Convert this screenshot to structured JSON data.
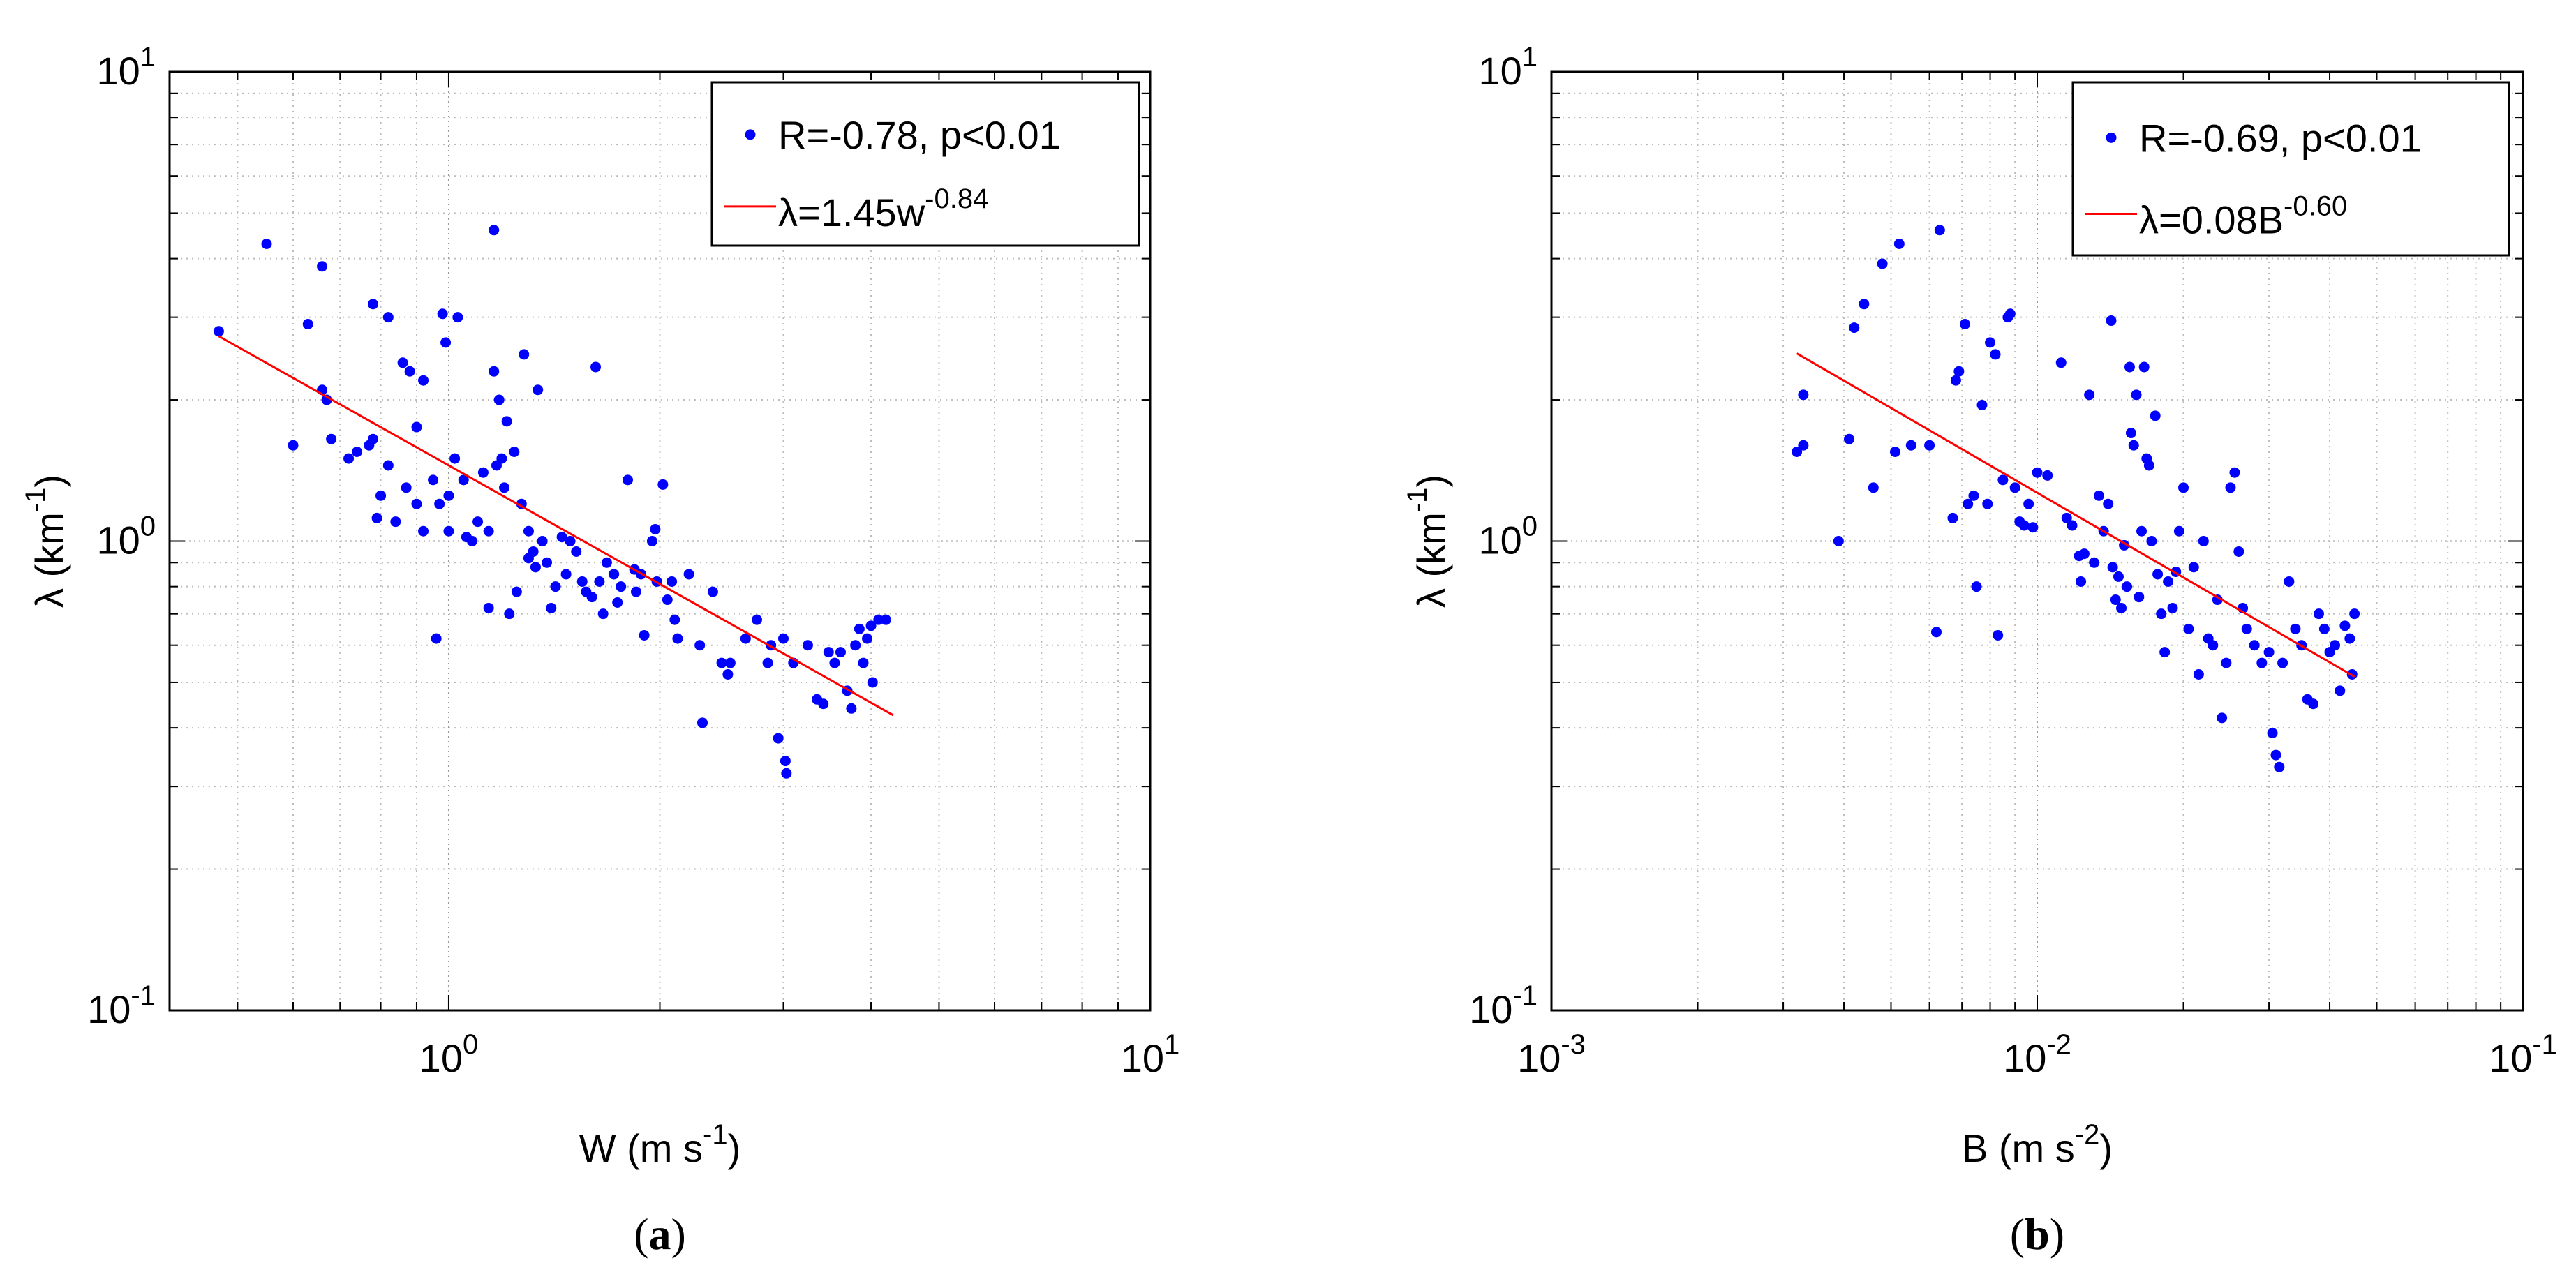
{
  "chart_data": [
    {
      "type": "scatter",
      "panel_label": "a",
      "xlabel": {
        "main": "W (m s",
        "sup": "-1",
        "end": ")"
      },
      "ylabel": {
        "main": "λ (km",
        "sup": "-1",
        "end": ")"
      },
      "xscale": "log",
      "yscale": "log",
      "xlim": [
        0.4,
        10
      ],
      "ylim": [
        0.1,
        10
      ],
      "xticks": [
        {
          "base": "10",
          "exp": "0",
          "value": 1
        },
        {
          "base": "10",
          "exp": "1",
          "value": 10
        }
      ],
      "yticks": [
        {
          "base": "10",
          "exp": "-1",
          "value": 0.1
        },
        {
          "base": "10",
          "exp": "0",
          "value": 1
        },
        {
          "base": "10",
          "exp": "1",
          "value": 10
        }
      ],
      "grid": true,
      "legend_position": "top-right",
      "legend": [
        {
          "kind": "marker",
          "text": "R=-0.78, p<0.01"
        },
        {
          "kind": "line",
          "text": "λ=1.45w",
          "sup": "-0.84"
        }
      ],
      "colors": {
        "points": "#0000ff",
        "fit": "#ff0000"
      },
      "fit": {
        "a": 1.45,
        "b": -0.84,
        "x_range": [
          0.47,
          4.3
        ]
      },
      "points": [
        [
          0.47,
          2.8
        ],
        [
          0.55,
          4.3
        ],
        [
          0.6,
          1.6
        ],
        [
          0.63,
          2.9
        ],
        [
          0.66,
          3.85
        ],
        [
          0.66,
          2.1
        ],
        [
          0.67,
          2.0
        ],
        [
          0.68,
          1.65
        ],
        [
          0.72,
          1.5
        ],
        [
          0.74,
          1.55
        ],
        [
          0.77,
          1.6
        ],
        [
          0.78,
          3.2
        ],
        [
          0.78,
          1.65
        ],
        [
          0.79,
          1.12
        ],
        [
          0.8,
          1.25
        ],
        [
          0.82,
          3.0
        ],
        [
          0.82,
          1.45
        ],
        [
          0.84,
          1.1
        ],
        [
          0.86,
          2.4
        ],
        [
          0.87,
          1.3
        ],
        [
          0.88,
          2.3
        ],
        [
          0.9,
          1.2
        ],
        [
          0.9,
          1.75
        ],
        [
          0.92,
          1.05
        ],
        [
          0.92,
          2.2
        ],
        [
          0.95,
          1.35
        ],
        [
          0.96,
          0.62
        ],
        [
          0.97,
          1.2
        ],
        [
          0.98,
          3.05
        ],
        [
          0.99,
          2.65
        ],
        [
          1.0,
          1.05
        ],
        [
          1.0,
          1.25
        ],
        [
          1.02,
          1.5
        ],
        [
          1.03,
          3.0
        ],
        [
          1.05,
          1.35
        ],
        [
          1.06,
          1.02
        ],
        [
          1.08,
          1.0
        ],
        [
          1.1,
          1.1
        ],
        [
          1.12,
          1.4
        ],
        [
          1.14,
          0.72
        ],
        [
          1.14,
          1.05
        ],
        [
          1.16,
          4.6
        ],
        [
          1.16,
          2.3
        ],
        [
          1.17,
          1.45
        ],
        [
          1.18,
          2.0
        ],
        [
          1.19,
          1.5
        ],
        [
          1.2,
          1.3
        ],
        [
          1.21,
          1.8
        ],
        [
          1.22,
          0.7
        ],
        [
          1.24,
          1.55
        ],
        [
          1.25,
          0.78
        ],
        [
          1.27,
          1.2
        ],
        [
          1.28,
          2.5
        ],
        [
          1.3,
          0.92
        ],
        [
          1.3,
          1.05
        ],
        [
          1.32,
          0.95
        ],
        [
          1.33,
          0.88
        ],
        [
          1.34,
          2.1
        ],
        [
          1.36,
          1.0
        ],
        [
          1.38,
          0.9
        ],
        [
          1.4,
          0.72
        ],
        [
          1.42,
          0.8
        ],
        [
          1.45,
          1.02
        ],
        [
          1.47,
          0.85
        ],
        [
          1.49,
          1.0
        ],
        [
          1.52,
          0.95
        ],
        [
          1.55,
          0.82
        ],
        [
          1.57,
          0.78
        ],
        [
          1.6,
          0.76
        ],
        [
          1.62,
          2.35
        ],
        [
          1.64,
          0.82
        ],
        [
          1.66,
          0.7
        ],
        [
          1.68,
          0.9
        ],
        [
          1.72,
          0.85
        ],
        [
          1.74,
          0.74
        ],
        [
          1.76,
          0.8
        ],
        [
          1.8,
          1.35
        ],
        [
          1.84,
          0.87
        ],
        [
          1.85,
          0.78
        ],
        [
          1.88,
          0.85
        ],
        [
          1.9,
          0.63
        ],
        [
          1.95,
          1.0
        ],
        [
          1.97,
          1.06
        ],
        [
          1.98,
          0.82
        ],
        [
          2.02,
          1.32
        ],
        [
          2.05,
          0.75
        ],
        [
          2.08,
          0.82
        ],
        [
          2.1,
          0.68
        ],
        [
          2.12,
          0.62
        ],
        [
          2.2,
          0.85
        ],
        [
          2.28,
          0.6
        ],
        [
          2.3,
          0.41
        ],
        [
          2.38,
          0.78
        ],
        [
          2.45,
          0.55
        ],
        [
          2.5,
          0.52
        ],
        [
          2.52,
          0.55
        ],
        [
          2.65,
          0.62
        ],
        [
          2.75,
          0.68
        ],
        [
          2.85,
          0.55
        ],
        [
          2.88,
          0.6
        ],
        [
          2.95,
          0.38
        ],
        [
          3.0,
          0.62
        ],
        [
          3.02,
          0.34
        ],
        [
          3.03,
          0.32
        ],
        [
          3.1,
          0.55
        ],
        [
          3.25,
          0.6
        ],
        [
          3.35,
          0.46
        ],
        [
          3.42,
          0.45
        ],
        [
          3.48,
          0.58
        ],
        [
          3.55,
          0.55
        ],
        [
          3.62,
          0.58
        ],
        [
          3.7,
          0.48
        ],
        [
          3.75,
          0.44
        ],
        [
          3.8,
          0.6
        ],
        [
          3.85,
          0.65
        ],
        [
          3.9,
          0.55
        ],
        [
          3.95,
          0.62
        ],
        [
          4.0,
          0.66
        ],
        [
          4.02,
          0.5
        ],
        [
          4.1,
          0.68
        ],
        [
          4.2,
          0.68
        ]
      ]
    },
    {
      "type": "scatter",
      "panel_label": "b",
      "xlabel": {
        "main": "B (m s",
        "sup": "-2",
        "end": ")"
      },
      "ylabel": {
        "main": "λ (km",
        "sup": "-1",
        "end": ")"
      },
      "xscale": "log",
      "yscale": "log",
      "xlim": [
        0.001,
        0.1
      ],
      "ylim": [
        0.1,
        10
      ],
      "xticks": [
        {
          "base": "10",
          "exp": "-3",
          "value": 0.001
        },
        {
          "base": "10",
          "exp": "-2",
          "value": 0.01
        },
        {
          "base": "10",
          "exp": "-1",
          "value": 0.1
        }
      ],
      "yticks": [
        {
          "base": "10",
          "exp": "-1",
          "value": 0.1
        },
        {
          "base": "10",
          "exp": "0",
          "value": 1
        },
        {
          "base": "10",
          "exp": "1",
          "value": 10
        }
      ],
      "grid": true,
      "legend_position": "top-right",
      "legend": [
        {
          "kind": "marker",
          "text": "R=-0.69, p<0.01"
        },
        {
          "kind": "line",
          "text": "λ=0.08B",
          "sup": "-0.60"
        }
      ],
      "colors": {
        "points": "#0000ff",
        "fit": "#ff0000"
      },
      "fit": {
        "a": 0.08,
        "b": -0.6,
        "x_range": [
          0.0032,
          0.045
        ]
      },
      "points": [
        [
          0.0032,
          1.55
        ],
        [
          0.0033,
          1.6
        ],
        [
          0.0033,
          2.05
        ],
        [
          0.0039,
          1.0
        ],
        [
          0.0041,
          1.65
        ],
        [
          0.0042,
          2.85
        ],
        [
          0.0044,
          3.2
        ],
        [
          0.0046,
          1.3
        ],
        [
          0.0048,
          3.9
        ],
        [
          0.0051,
          1.55
        ],
        [
          0.0052,
          4.3
        ],
        [
          0.0055,
          1.6
        ],
        [
          0.006,
          1.6
        ],
        [
          0.0062,
          0.64
        ],
        [
          0.0063,
          4.6
        ],
        [
          0.0067,
          1.12
        ],
        [
          0.0068,
          2.2
        ],
        [
          0.0069,
          2.3
        ],
        [
          0.0071,
          2.9
        ],
        [
          0.0072,
          1.2
        ],
        [
          0.0074,
          1.25
        ],
        [
          0.0075,
          0.8
        ],
        [
          0.0077,
          1.95
        ],
        [
          0.0079,
          1.2
        ],
        [
          0.008,
          2.65
        ],
        [
          0.0082,
          2.5
        ],
        [
          0.0083,
          0.63
        ],
        [
          0.0085,
          1.35
        ],
        [
          0.0087,
          3.0
        ],
        [
          0.0088,
          3.05
        ],
        [
          0.009,
          1.3
        ],
        [
          0.0092,
          1.1
        ],
        [
          0.0094,
          1.08
        ],
        [
          0.0096,
          1.2
        ],
        [
          0.0098,
          1.07
        ],
        [
          0.01,
          1.4
        ],
        [
          0.0105,
          1.38
        ],
        [
          0.0112,
          2.4
        ],
        [
          0.0115,
          1.12
        ],
        [
          0.0118,
          1.08
        ],
        [
          0.0122,
          0.93
        ],
        [
          0.0123,
          0.82
        ],
        [
          0.0125,
          0.94
        ],
        [
          0.0128,
          2.05
        ],
        [
          0.0131,
          0.9
        ],
        [
          0.0134,
          1.25
        ],
        [
          0.0137,
          1.05
        ],
        [
          0.014,
          1.2
        ],
        [
          0.0142,
          2.95
        ],
        [
          0.0143,
          0.88
        ],
        [
          0.0145,
          0.75
        ],
        [
          0.0147,
          0.84
        ],
        [
          0.0149,
          0.72
        ],
        [
          0.0151,
          0.98
        ],
        [
          0.0153,
          0.8
        ],
        [
          0.0155,
          2.35
        ],
        [
          0.0156,
          1.7
        ],
        [
          0.0158,
          1.6
        ],
        [
          0.016,
          2.05
        ],
        [
          0.0162,
          0.76
        ],
        [
          0.0164,
          1.05
        ],
        [
          0.0166,
          2.35
        ],
        [
          0.0168,
          1.5
        ],
        [
          0.017,
          1.45
        ],
        [
          0.0172,
          1.0
        ],
        [
          0.0175,
          1.85
        ],
        [
          0.0177,
          0.85
        ],
        [
          0.018,
          0.7
        ],
        [
          0.0183,
          0.58
        ],
        [
          0.0186,
          0.82
        ],
        [
          0.019,
          0.72
        ],
        [
          0.0193,
          0.86
        ],
        [
          0.0196,
          1.05
        ],
        [
          0.02,
          1.3
        ],
        [
          0.0205,
          0.65
        ],
        [
          0.021,
          0.88
        ],
        [
          0.0215,
          0.52
        ],
        [
          0.022,
          1.0
        ],
        [
          0.0225,
          0.62
        ],
        [
          0.023,
          0.6
        ],
        [
          0.0235,
          0.75
        ],
        [
          0.024,
          0.42
        ],
        [
          0.0245,
          0.55
        ],
        [
          0.025,
          1.3
        ],
        [
          0.0255,
          1.4
        ],
        [
          0.026,
          0.95
        ],
        [
          0.0265,
          0.72
        ],
        [
          0.027,
          0.65
        ],
        [
          0.028,
          0.6
        ],
        [
          0.029,
          0.55
        ],
        [
          0.03,
          0.58
        ],
        [
          0.0305,
          0.39
        ],
        [
          0.031,
          0.35
        ],
        [
          0.0315,
          0.33
        ],
        [
          0.032,
          0.55
        ],
        [
          0.033,
          0.82
        ],
        [
          0.034,
          0.65
        ],
        [
          0.035,
          0.6
        ],
        [
          0.036,
          0.46
        ],
        [
          0.037,
          0.45
        ],
        [
          0.038,
          0.7
        ],
        [
          0.039,
          0.65
        ],
        [
          0.04,
          0.58
        ],
        [
          0.041,
          0.6
        ],
        [
          0.042,
          0.48
        ],
        [
          0.043,
          0.66
        ],
        [
          0.044,
          0.62
        ],
        [
          0.0445,
          0.52
        ],
        [
          0.045,
          0.7
        ]
      ]
    }
  ]
}
